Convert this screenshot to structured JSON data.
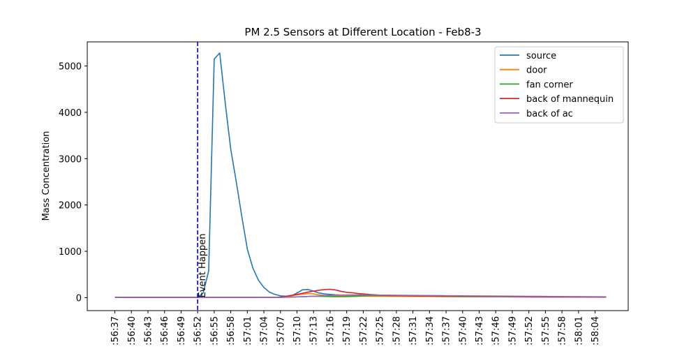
{
  "chart_data": {
    "type": "line",
    "title": "PM 2.5 Sensors at Different Location - Feb8-3",
    "xlabel": "",
    "ylabel": "Mass Concentration",
    "ylim": [
      -280,
      5520
    ],
    "yticks": [
      0,
      1000,
      2000,
      3000,
      4000,
      5000
    ],
    "x_tick_labels": [
      ":56:37",
      ":56:40",
      ":56:43",
      ":56:46",
      ":56:49",
      ":56:52",
      ":56:55",
      ":56:58",
      ":57:01",
      ":57:04",
      ":57:07",
      ":57:10",
      ":57:13",
      ":57:16",
      ":57:19",
      ":57:22",
      ":57:25",
      ":57:28",
      ":57:31",
      ":57:34",
      ":57:37",
      ":57:40",
      ":57:43",
      ":57:46",
      ":57:49",
      ":57:52",
      ":57:55",
      ":57:58",
      ":58:01",
      ":58:04"
    ],
    "xlim": [
      -5,
      93
    ],
    "legend_position": "top-right",
    "annotation": {
      "x": 15,
      "text": "Event Happen",
      "color": "#0000cc"
    },
    "series": [
      {
        "name": "source",
        "color": "#1f77b4",
        "x": [
          0,
          15,
          16,
          17,
          18,
          19,
          20,
          21,
          22,
          23,
          24,
          25,
          26,
          27,
          28,
          29,
          30,
          31,
          32,
          33,
          34,
          35,
          36,
          37,
          38,
          39,
          40,
          41,
          42,
          43,
          44,
          45,
          46,
          47,
          48,
          50,
          52,
          55,
          60,
          70,
          80,
          89
        ],
        "y": [
          5,
          5,
          100,
          580,
          5150,
          5280,
          4200,
          3200,
          2500,
          1750,
          1050,
          640,
          380,
          220,
          120,
          70,
          40,
          30,
          40,
          100,
          170,
          175,
          140,
          100,
          80,
          70,
          60,
          55,
          50,
          45,
          40,
          38,
          36,
          35,
          34,
          32,
          30,
          28,
          24,
          18,
          13,
          10
        ]
      },
      {
        "name": "door",
        "color": "#ff7f0e",
        "x": [
          0,
          30,
          31,
          32,
          33,
          34,
          35,
          36,
          37,
          38,
          39,
          40,
          42,
          44,
          46,
          50,
          60,
          70,
          80,
          89
        ],
        "y": [
          5,
          5,
          20,
          40,
          60,
          75,
          90,
          80,
          60,
          50,
          45,
          40,
          35,
          32,
          30,
          28,
          22,
          18,
          12,
          8
        ]
      },
      {
        "name": "fan corner",
        "color": "#2ca02c",
        "x": [
          0,
          30,
          34,
          36,
          38,
          40,
          42,
          44,
          46,
          48,
          50,
          60,
          70,
          80,
          89
        ],
        "y": [
          5,
          5,
          20,
          30,
          25,
          20,
          22,
          30,
          45,
          45,
          42,
          30,
          22,
          15,
          10
        ]
      },
      {
        "name": "back of mannequin",
        "color": "#d62728",
        "x": [
          0,
          29,
          30,
          31,
          32,
          33,
          34,
          35,
          36,
          37,
          38,
          39,
          40,
          41,
          42,
          43,
          44,
          46,
          48,
          50,
          55,
          60,
          70,
          80,
          89
        ],
        "y": [
          5,
          5,
          15,
          30,
          50,
          70,
          95,
          120,
          140,
          160,
          175,
          180,
          165,
          135,
          115,
          105,
          90,
          70,
          55,
          45,
          38,
          33,
          25,
          18,
          12
        ]
      },
      {
        "name": "back of ac",
        "color": "#9467bd",
        "x": [
          0,
          30,
          34,
          38,
          40,
          44,
          48,
          52,
          60,
          70,
          80,
          89
        ],
        "y": [
          5,
          5,
          20,
          40,
          55,
          60,
          55,
          50,
          42,
          34,
          25,
          18
        ]
      }
    ]
  }
}
